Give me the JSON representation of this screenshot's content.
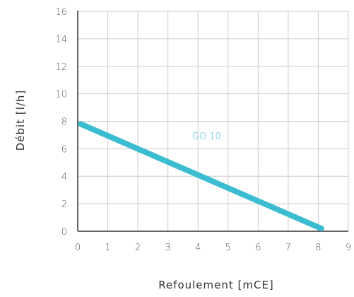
{
  "chart_data": {
    "type": "line",
    "xlabel": "Refoulement [mCE]",
    "ylabel": "Débit [l/h]",
    "x_ticks": [
      "0",
      "1",
      "2",
      "3",
      "4",
      "5",
      "6",
      "7",
      "8",
      "9"
    ],
    "y_ticks": [
      "0",
      "2",
      "4",
      "6",
      "8",
      "10",
      "12",
      "14",
      "16"
    ],
    "xlim": [
      0,
      9
    ],
    "ylim": [
      0,
      16
    ],
    "grid": true,
    "series": [
      {
        "name": "GO 10",
        "color": "#3cbcd0",
        "x": [
          0.1,
          8.1
        ],
        "y": [
          7.8,
          0.2
        ]
      }
    ],
    "annotations": [
      {
        "text": "GO 10",
        "x": 3.8,
        "y": 6.7,
        "color": "#3cbcd0"
      }
    ]
  }
}
